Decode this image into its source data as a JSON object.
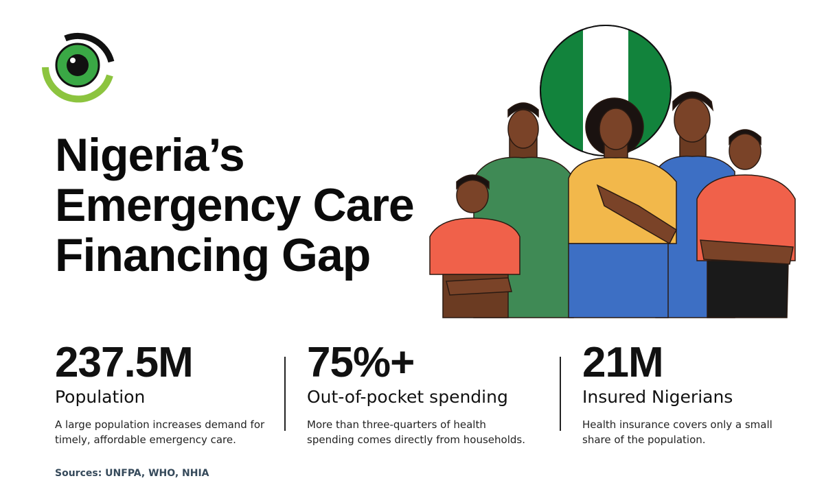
{
  "header": {
    "title_lines": [
      "Nigeria’s",
      "Emergency Care",
      "Financing Gap"
    ]
  },
  "stats": [
    {
      "value": "237.5M",
      "label": "Population",
      "description": "A large population increases demand for timely, affordable emergency care."
    },
    {
      "value": "75%+",
      "label": "Out-of-pocket spending",
      "description": "More than three-quarters of health spending comes directly from households."
    },
    {
      "value": "21M",
      "label": "Insured Nigerians",
      "description": "Health insurance covers only a small share of the population."
    }
  ],
  "footer": {
    "sources": "Sources: UNFPA, WHO, NHIA"
  }
}
